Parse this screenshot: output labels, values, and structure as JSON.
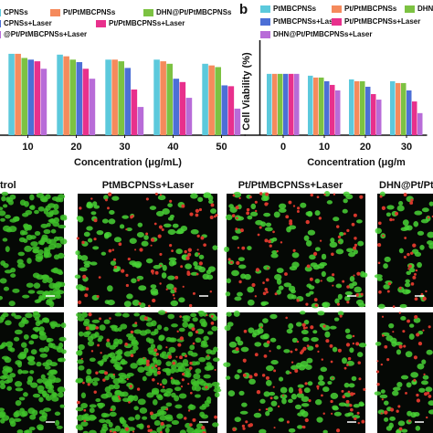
{
  "chart_data": [
    {
      "type": "bar",
      "xlabel": "Concentration (μg/mL)",
      "categories": [
        "10",
        "20",
        "30",
        "40",
        "50"
      ],
      "ylim": [
        0,
        110
      ],
      "series": [
        {
          "name": "CPNSs",
          "color": "#5cc9dc",
          "values": [
            98,
            97,
            91,
            91,
            86
          ]
        },
        {
          "name": "Pt/PtMBCPNSs",
          "color": "#f58a5c",
          "values": [
            98,
            95,
            91,
            89,
            84
          ]
        },
        {
          "name": "DHN@Pt/PtMBCPNSs",
          "color": "#7cc242",
          "values": [
            93,
            91,
            89,
            86,
            82
          ]
        },
        {
          "name": "CPNSs+Laser",
          "color": "#4c6fd6",
          "values": [
            91,
            88,
            81,
            68,
            60
          ]
        },
        {
          "name": "Pt/PtMBCPNSs+Laser",
          "color": "#e8308c",
          "values": [
            89,
            80,
            55,
            64,
            59
          ]
        },
        {
          "name": "@Pt/PtMBCPNSs+Laser",
          "color": "#b86cd8",
          "values": [
            80,
            68,
            34,
            45,
            32
          ]
        }
      ]
    },
    {
      "type": "bar",
      "panel": "b",
      "ylabel": "Cell Viability (%)",
      "xlabel": "Concentration (μg/m",
      "categories": [
        "0",
        "10",
        "20",
        "30"
      ],
      "ylim": [
        0,
        140
      ],
      "series": [
        {
          "name": "PtMBCPNSs",
          "color": "#5cc9dc",
          "values": [
            100,
            97,
            91,
            88
          ]
        },
        {
          "name": "Pt/PtMBCPNSs",
          "color": "#f58a5c",
          "values": [
            100,
            94,
            88,
            85
          ]
        },
        {
          "name": "DHN",
          "color": "#7cc242",
          "values": [
            100,
            94,
            88,
            85
          ]
        },
        {
          "name": "PtMBCPNSs+Laser",
          "color": "#4c6fd6",
          "values": [
            100,
            88,
            79,
            73
          ]
        },
        {
          "name": "Pt/PtMBCPNSs+Laser",
          "color": "#e8308c",
          "values": [
            100,
            82,
            67,
            55
          ]
        },
        {
          "name": "DHN@Pt/PtMBCPNSs+Laser",
          "color": "#b86cd8",
          "values": [
            100,
            73,
            58,
            36
          ]
        }
      ]
    }
  ],
  "images": {
    "titles": [
      "trol",
      "PtMBCPNSs+Laser",
      "Pt/PtMBCPNSs+Laser",
      "DHN@Pt/Ptl"
    ]
  }
}
